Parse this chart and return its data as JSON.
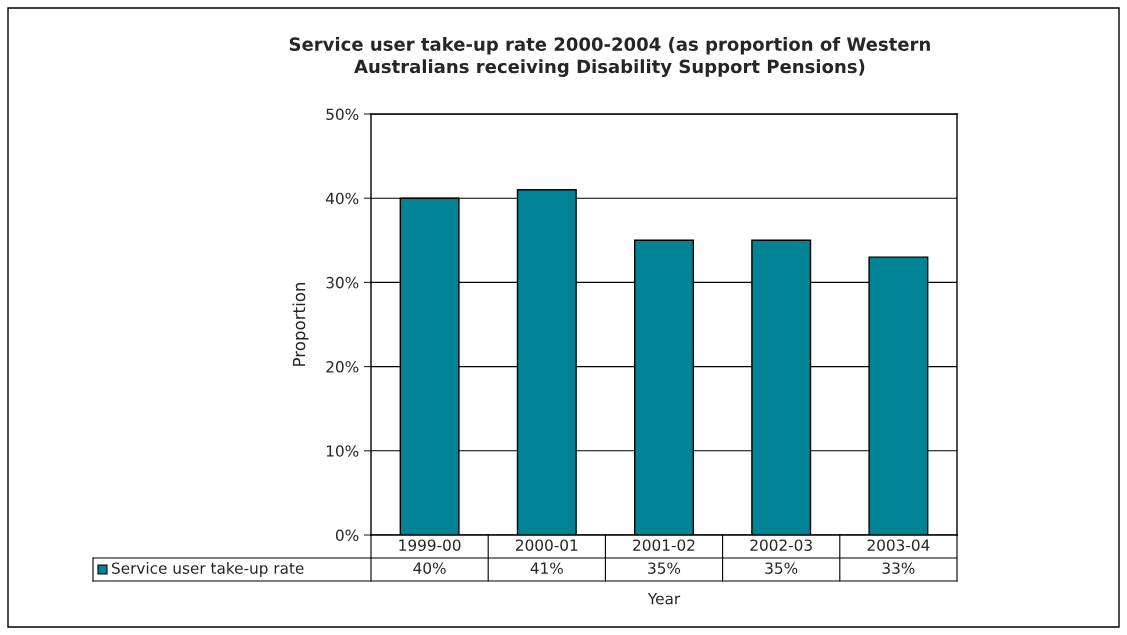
{
  "chart_data": {
    "type": "bar",
    "title": "Service user take-up rate 2000-2004 (as proportion of Western\nAustralians receiving Disability Support Pensions)",
    "xlabel": "Year",
    "ylabel": "Proportion",
    "categories": [
      "1999-00",
      "2000-01",
      "2001-02",
      "2002-03",
      "2003-04"
    ],
    "series": [
      {
        "name": "Service user take-up rate",
        "color": "#008394",
        "values": [
          40,
          41,
          35,
          35,
          33
        ],
        "value_labels": [
          "40%",
          "41%",
          "35%",
          "35%",
          "33%"
        ]
      }
    ],
    "ylim": [
      0,
      50
    ],
    "yticks": [
      {
        "value": 0,
        "label": "0%"
      },
      {
        "value": 10,
        "label": "10%"
      },
      {
        "value": 20,
        "label": "20%"
      },
      {
        "value": 30,
        "label": "30%"
      },
      {
        "value": 40,
        "label": "40%"
      },
      {
        "value": 50,
        "label": "50%"
      }
    ],
    "grid": "y",
    "legend": "bottom"
  }
}
